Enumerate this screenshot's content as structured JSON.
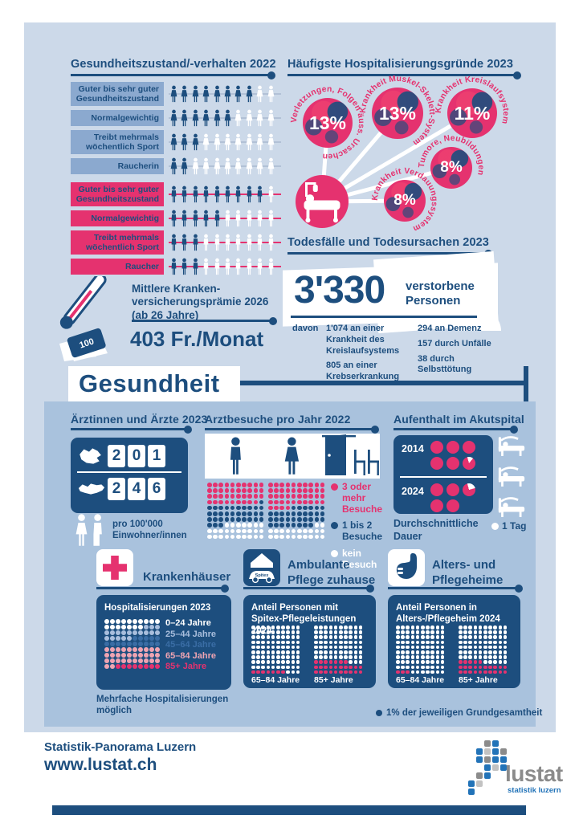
{
  "colors": {
    "navy": "#1d4e7e",
    "pink": "#e5326f",
    "bg": "#ccd9e9",
    "panel": "#a9c2dd",
    "bar_female": "#8ba9cf",
    "salmon": "#efa4b2",
    "lightblue": "#a9bedd",
    "medblue": "#3a6da5",
    "logo_blue": "#2273b8",
    "logo_gray": "#8b8b8b"
  },
  "health_behavior": {
    "title": "Gesundheitszustand/-verhalten 2022",
    "total": 10,
    "female_rows": [
      {
        "label": "Guter bis sehr guter Gesundheitszustand",
        "value": 8,
        "sex": "f"
      },
      {
        "label": "Normalgewichtig",
        "value": 6,
        "sex": "f"
      },
      {
        "label": "Treibt mehrmals wöchentlich Sport",
        "value": 3,
        "sex": "f"
      },
      {
        "label": "Raucherin",
        "value": 2,
        "sex": "f"
      }
    ],
    "male_rows": [
      {
        "label": "Guter bis sehr guter Gesundheitszustand",
        "value": 9,
        "sex": "m"
      },
      {
        "label": "Normalgewichtig",
        "value": 5,
        "sex": "m"
      },
      {
        "label": "Treibt mehrmals wöchentlich Sport",
        "value": 3,
        "sex": "m"
      },
      {
        "label": "Raucher",
        "value": 3,
        "sex": "m"
      }
    ]
  },
  "hospital_reasons": {
    "title": "Häufigste Hospitalisierungsgründe 2023",
    "bubbles": [
      {
        "label": "Verletzungen, Folgen äuss. Ursachen",
        "pct": "13%"
      },
      {
        "label": "Krankheit Muskel-Skelett-System",
        "pct": "13%"
      },
      {
        "label": "Krankheit Kreislaufsystem",
        "pct": "11%"
      },
      {
        "label": "Tumore, Neubildungen",
        "pct": "8%"
      },
      {
        "label": "Krankheit Verdauungssystem",
        "pct": "8%"
      }
    ]
  },
  "deaths": {
    "title": "Todesfälle und Todesursachen 2023",
    "total": "3'330",
    "total_label": "verstorbene Personen",
    "davon": "davon",
    "col1": [
      "1'074 an einer Krankheit des Kreislaufsystems",
      "805 an einer Krebserkrankung"
    ],
    "col2": [
      "294 an Demenz",
      "157 durch Unfälle",
      "38 durch Selbsttötung"
    ]
  },
  "premium": {
    "line1": "Mittlere Kranken-",
    "line2": "versicherungsprämie 2026",
    "line3": "(ab 26 Jahre)",
    "value": "403 Fr./Monat",
    "note_label": "100"
  },
  "section_title": "Gesundheit",
  "doctors": {
    "title": "Ärztinnen und Ärzte 2023",
    "lu_digits": [
      "2",
      "0",
      "1"
    ],
    "ch_digits": [
      "2",
      "4",
      "6"
    ],
    "caption": "pro 100'000 Einwohner/innen"
  },
  "visits": {
    "title": "Arztbesuche pro Jahr 2022",
    "legend": [
      {
        "label": "3 oder mehr Besuche",
        "color": "#e5326f"
      },
      {
        "label": "1 bis 2 Besuche",
        "color": "#1d4e7e"
      },
      {
        "label": "kein Besuch",
        "color": "#ffffff"
      }
    ],
    "men": {
      "three_plus": 39,
      "one_two": 34,
      "none": 27
    },
    "women": {
      "three_plus": 44,
      "one_two": 34,
      "none": 22
    }
  },
  "akut": {
    "title": "Aufenthalt im Akutspital",
    "year1": "2014",
    "year2": "2024",
    "values_2014": [
      1,
      1,
      1,
      1,
      1,
      0.85
    ],
    "values_2024": [
      1,
      1,
      0.75,
      1,
      1
    ],
    "caption": "Durchschnittliche Dauer",
    "legend": "1 Tag"
  },
  "hospitals_card": {
    "title": "Krankenhäuser",
    "card_title": "Hospitalisierungen 2023",
    "groups": [
      {
        "label": "0–24 Jahre",
        "count": 17,
        "color": "#ffffff"
      },
      {
        "label": "25–44 Jahre",
        "count": 18,
        "color": "#a9bedd"
      },
      {
        "label": "45–64 Jahre",
        "count": 15,
        "color": "#3a6da5"
      },
      {
        "label": "65–84 Jahre",
        "count": 32,
        "color": "#efa4b2"
      },
      {
        "label": "85+ Jahre",
        "count": 8,
        "color": "#e5326f"
      }
    ],
    "note": "Mehrfache Hospitalisierungen möglich"
  },
  "spitex_card": {
    "title_line1": "Ambulante",
    "title_line2": "Pflege zuhause",
    "icon_label": "Spitex",
    "card_line1": "Anteil Personen mit",
    "card_line2": "Spitex-Pflegeleistungen 2024",
    "grids": [
      {
        "label": "65–84 Jahre",
        "value": 7
      },
      {
        "label": "85+ Jahre",
        "value": 27
      }
    ]
  },
  "homes_card": {
    "title_line1": "Alters- und",
    "title_line2": "Pflegeheime",
    "card_line1": "Anteil Personen in",
    "card_line2": "Alters-/Pflegeheim 2024",
    "grids": [
      {
        "label": "65–84 Jahre",
        "value": 3
      },
      {
        "label": "85+ Jahre",
        "value": 25
      }
    ]
  },
  "panel_note": "1% der jeweiligen Grundgesamtheit",
  "footer": {
    "line1": "Statistik-Panorama Luzern",
    "line2": "www.lustat.ch",
    "logo": "lustat",
    "logo_sub": "statistik luzern"
  },
  "chart_data": [
    {
      "type": "pictogram",
      "title": "Gesundheitszustand/-verhalten 2022",
      "unit": "von 10 Personen",
      "categories": [
        "Guter bis sehr guter Gesundheitszustand",
        "Normalgewichtig",
        "Treibt mehrmals wöchentlich Sport",
        "Raucherin/Raucher"
      ],
      "series": [
        {
          "name": "Frauen",
          "values": [
            8,
            6,
            3,
            2
          ]
        },
        {
          "name": "Männer",
          "values": [
            9,
            5,
            3,
            3
          ]
        }
      ]
    },
    {
      "type": "bubble",
      "title": "Häufigste Hospitalisierungsgründe 2023",
      "unit": "%",
      "categories": [
        "Verletzungen, Folgen äuss. Ursachen",
        "Krankheit Muskel-Skelett-System",
        "Krankheit Kreislaufsystem",
        "Tumore, Neubildungen",
        "Krankheit Verdauungssystem"
      ],
      "values": [
        13,
        13,
        11,
        8,
        8
      ]
    },
    {
      "type": "table",
      "title": "Todesfälle und Todesursachen 2023",
      "total": 3330,
      "categories": [
        "Krankheit des Kreislaufsystems",
        "Krebserkrankung",
        "Demenz",
        "Unfälle",
        "Selbsttötung"
      ],
      "values": [
        1074,
        805,
        294,
        157,
        38
      ]
    },
    {
      "type": "table",
      "title": "Mittlere Krankenversicherungsprämie 2026 (ab 26 Jahre)",
      "values": [
        "403 Fr./Monat"
      ]
    },
    {
      "type": "table",
      "title": "Ärztinnen und Ärzte 2023 pro 100'000 Einwohner/innen",
      "categories": [
        "Kanton Luzern",
        "Schweiz"
      ],
      "values": [
        201,
        246
      ]
    },
    {
      "type": "waffle",
      "title": "Arztbesuche pro Jahr 2022",
      "unit": "%",
      "categories": [
        "3 oder mehr Besuche",
        "1 bis 2 Besuche",
        "kein Besuch"
      ],
      "series": [
        {
          "name": "Männer",
          "values": [
            39,
            34,
            27
          ]
        },
        {
          "name": "Frauen",
          "values": [
            44,
            34,
            22
          ]
        }
      ]
    },
    {
      "type": "pictogram",
      "title": "Aufenthalt im Akutspital – Durchschnittliche Dauer",
      "unit": "Tage",
      "categories": [
        "2014",
        "2024"
      ],
      "values": [
        5.85,
        4.75
      ]
    },
    {
      "type": "waffle",
      "title": "Hospitalisierungen 2023",
      "unit": "% (1 Punkt = 1%)",
      "categories": [
        "0–24 Jahre",
        "25–44 Jahre",
        "45–64 Jahre",
        "65–84 Jahre",
        "85+ Jahre"
      ],
      "values": [
        17,
        18,
        15,
        32,
        8
      ]
    },
    {
      "type": "waffle",
      "title": "Anteil Personen mit Spitex-Pflegeleistungen 2024",
      "unit": "%",
      "categories": [
        "65–84 Jahre",
        "85+ Jahre"
      ],
      "values": [
        7,
        27
      ]
    },
    {
      "type": "waffle",
      "title": "Anteil Personen in Alters-/Pflegeheim 2024",
      "unit": "%",
      "categories": [
        "65–84 Jahre",
        "85+ Jahre"
      ],
      "values": [
        3,
        25
      ]
    }
  ]
}
